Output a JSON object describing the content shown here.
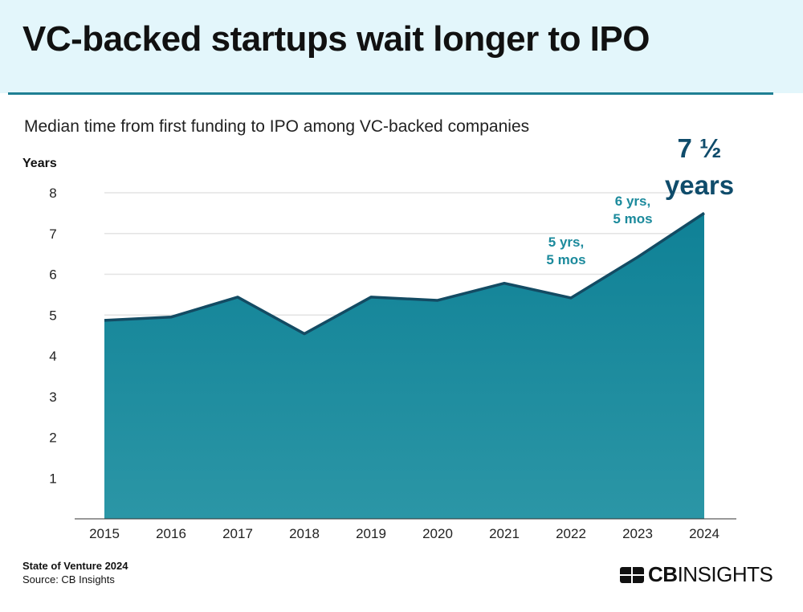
{
  "header": {
    "title": "VC-backed startups wait longer to IPO"
  },
  "subtitle": "Median time from first funding to IPO among VC-backed companies",
  "footer": {
    "report": "State of Venture 2024",
    "source": "Source: CB Insights"
  },
  "logo": {
    "bold": "CB",
    "regular": "INSIGHTS"
  },
  "colors": {
    "area_top": "#0f8196",
    "area_bottom": "#2b96a6",
    "line": "#134b63",
    "annotation": "#1b8a9c",
    "highlight": "#0f4c6b",
    "header_bg": "#e3f6fb"
  },
  "chart_data": {
    "type": "area",
    "title": "",
    "ylabel": "Years",
    "xlabel": "",
    "ylim": [
      0,
      8
    ],
    "yticks": [
      1,
      2,
      3,
      4,
      5,
      6,
      7,
      8
    ],
    "grid": true,
    "categories": [
      "2015",
      "2016",
      "2017",
      "2018",
      "2019",
      "2020",
      "2021",
      "2022",
      "2023",
      "2024"
    ],
    "values": [
      4.87,
      4.95,
      5.44,
      4.54,
      5.44,
      5.36,
      5.78,
      5.42,
      6.42,
      7.5
    ],
    "annotations": [
      {
        "category": "2022",
        "lines": [
          "5 yrs,",
          "5 mos"
        ]
      },
      {
        "category": "2023",
        "lines": [
          "6 yrs,",
          "5 mos"
        ]
      },
      {
        "category": "2024",
        "lines": [
          "7 ½",
          "years"
        ],
        "emphasis": true
      }
    ]
  }
}
